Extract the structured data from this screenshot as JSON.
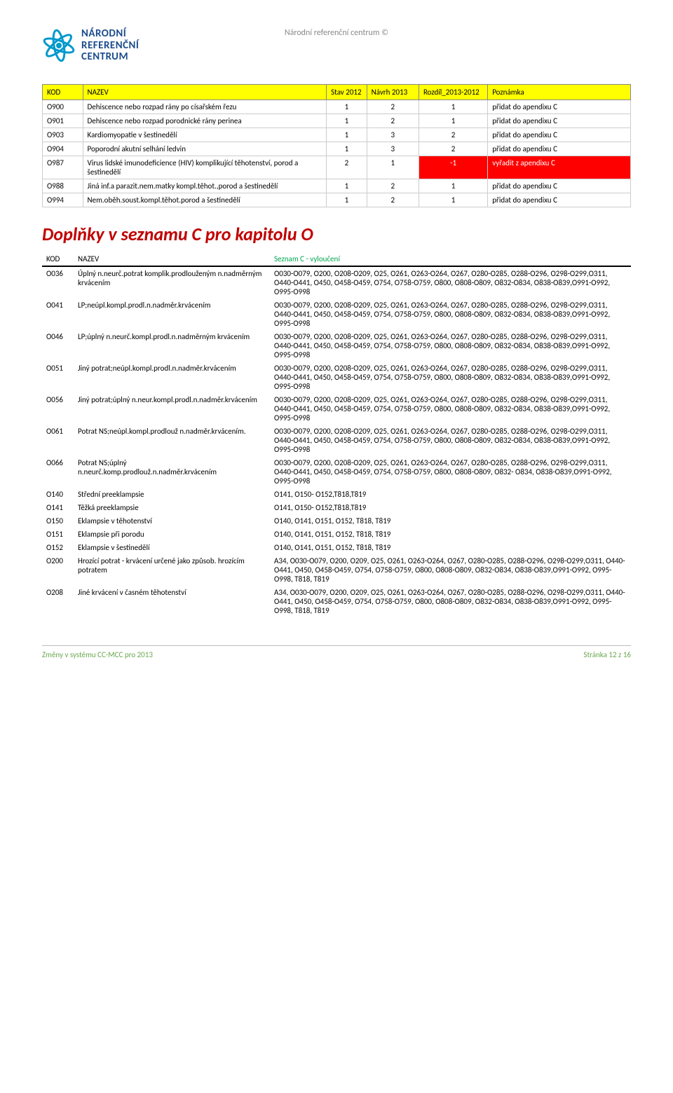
{
  "doc_title": "Národní referenční centrum ©",
  "brand": {
    "l1": "NÁRODNÍ",
    "l2": "REFERENČNÍ",
    "l3": "CENTRUM"
  },
  "logo_color": "#0099cc",
  "table1": {
    "header_bg": "#ffff00",
    "red_bg": "#ff0000",
    "columns": [
      "KOD",
      "NAZEV",
      "Stav 2012",
      "Návrh 2013",
      "Rozdíl_2013-2012",
      "Poznámka"
    ],
    "col_widths": [
      "48px",
      "290px",
      "48px",
      "62px",
      "82px",
      "170px"
    ],
    "rows": [
      {
        "kod": "O900",
        "nazev": "Dehiscence nebo rozpad rány po císařském řezu",
        "stav": "1",
        "navrh": "2",
        "rozdil": "1",
        "pozn": "přidat do apendixu C"
      },
      {
        "kod": "O901",
        "nazev": "Dehiscence nebo rozpad porodnické rány perinea",
        "stav": "1",
        "navrh": "2",
        "rozdil": "1",
        "pozn": "přidat do apendixu C"
      },
      {
        "kod": "O903",
        "nazev": "Kardiomyopatie v šestinedělí",
        "stav": "1",
        "navrh": "3",
        "rozdil": "2",
        "pozn": "přidat do apendixu C"
      },
      {
        "kod": "O904",
        "nazev": "Poporodní akutní selhání ledvin",
        "stav": "1",
        "navrh": "3",
        "rozdil": "2",
        "pozn": "přidat do apendixu C"
      },
      {
        "kod": "O987",
        "nazev": "Virus lidské imunodeficience (HIV) komplikující těhotenství, porod a šestinedělí",
        "stav": "2",
        "navrh": "1",
        "rozdil": "-1",
        "pozn": "vyřadit z apendixu C",
        "red": true
      },
      {
        "kod": "O988",
        "nazev": "Jiná inf.a parazit.nem.matky kompl.těhot.,porod a šestinedělí",
        "stav": "1",
        "navrh": "2",
        "rozdil": "1",
        "pozn": "přidat do apendixu C"
      },
      {
        "kod": "O994",
        "nazev": "Nem.oběh.soust.kompl.těhot.porod a šestinedělí",
        "stav": "1",
        "navrh": "2",
        "rozdil": "1",
        "pozn": "přidat do apendixu C"
      }
    ]
  },
  "section_heading": {
    "text": "Doplňky v seznamu C pro kapitolu O",
    "color": "#c00000"
  },
  "table2": {
    "columns": [
      "KOD",
      "NAZEV",
      "Seznam C - vyloučení"
    ],
    "header_color_3": "#00a650",
    "rows": [
      {
        "kod": "O036",
        "nazev": "Úplný n.neurč.potrat komplik.prodlouženým n.nadměrným krvácením",
        "seznam": "O030-O079, O200, O208-O209, O25, O261, O263-O264, O267, O280-O285, O288-O296, O298-O299,O311, O440-O441, O450, O458-O459, O754, O758-O759, O800, O808-O809, O832-O834, O838-O839,O991-O992, O995-O998"
      },
      {
        "kod": "O041",
        "nazev": "LP;neúpl.kompl.prodl.n.nadměr.krvácením",
        "seznam": "O030-O079, O200, O208-O209, O25, O261, O263-O264, O267, O280-O285, O288-O296, O298-O299,O311, O440-O441, O450, O458-O459, O754, O758-O759, O800, O808-O809, O832-O834, O838-O839,O991-O992, O995-O998"
      },
      {
        "kod": "O046",
        "nazev": "LP;úplný n.neurč.kompl.prodl.n.nadměrným krvácením",
        "seznam": "O030-O079, O200, O208-O209, O25, O261, O263-O264, O267, O280-O285, O288-O296, O298-O299,O311, O440-O441, O450, O458-O459, O754, O758-O759, O800, O808-O809, O832-O834, O838-O839,O991-O992, O995-O998"
      },
      {
        "kod": "O051",
        "nazev": "Jiný potrat;neúpl.kompl.prodl.n.nadměr.krvácením",
        "seznam": "O030-O079, O200, O208-O209, O25, O261, O263-O264, O267, O280-O285, O288-O296, O298-O299,O311, O440-O441, O450, O458-O459, O754, O758-O759, O800, O808-O809, O832-O834, O838-O839,O991-O992, O995-O998"
      },
      {
        "kod": "O056",
        "nazev": "Jiný potrat;úplný n.neur.kompl.prodl.n.nadměr.krvácením",
        "seznam": "O030-O079, O200, O208-O209, O25, O261, O263-O264, O267, O280-O285, O288-O296, O298-O299,O311, O440-O441, O450, O458-O459, O754, O758-O759, O800, O808-O809, O832-O834, O838-O839,O991-O992, O995-O998"
      },
      {
        "kod": "O061",
        "nazev": "Potrat NS;neúpl.kompl.prodlouž n.nadměr.krvácením.",
        "seznam": "O030-O079, O200, O208-O209, O25, O261, O263-O264, O267, O280-O285, O288-O296, O298-O299,O311, O440-O441, O450, O458-O459, O754, O758-O759, O800, O808-O809, O832-O834, O838-O839,O991-O992, O995-O998"
      },
      {
        "kod": "O066",
        "nazev": "Potrat NS;úplný n.neurč.komp.prodlouž.n.nadměr.krvácením",
        "seznam": "O030-O079, O200, O208-O209, O25, O261, O263-O264, O267, O280-O285, O288-O296, O298-O299,O311, O440-O441, O450, O458-O459, O754, O758-O759, O800, O808-O809, O832- O834, O838-O839,O991-O992, O995-O998"
      },
      {
        "kod": "O140",
        "nazev": "Střední preeklampsie",
        "seznam": "O141, O150- O152,T818,T819"
      },
      {
        "kod": "O141",
        "nazev": "Těžká preeklampsie",
        "seznam": "O141, O150- O152,T818,T819"
      },
      {
        "kod": "O150",
        "nazev": "Eklampsie v těhotenství",
        "seznam": "O140, O141, O151, O152, T818, T819"
      },
      {
        "kod": "O151",
        "nazev": "Eklampsie při porodu",
        "seznam": "O140, O141, O151, O152, T818, T819"
      },
      {
        "kod": "O152",
        "nazev": "Eklampsie v šestinedělí",
        "seznam": "O140, O141, O151, O152, T818, T819"
      },
      {
        "kod": "O200",
        "nazev": "Hrozící potrat - krvácení určené jako způsob. hrozícím potratem",
        "seznam": "A34, O030-O079, O200, O209, O25, O261, O263-O264, O267, O280-O285, O288-O296, O298-O299,O311, O440-O441, O450, O458-O459, O754, O758-O759, O800, O808-O809, O832-O834, O838-O839,O991-O992, O995-O998, T818, T819"
      },
      {
        "kod": "O208",
        "nazev": "Jiné krvácení v časném těhotenství",
        "seznam": "A34, O030-O079, O200, O209, O25, O261, O263-O264, O267, O280-O285, O288-O296, O298-O299,O311, O440-O441, O450, O458-O459, O754, O758-O759, O800, O808-O809, O832-O834, O838-O839,O991-O992, O995-O998, T818, T819"
      }
    ]
  },
  "footer": {
    "left": "Změny v systému CC-MCC pro 2013",
    "right": "Stránka 12 z 16",
    "color": "#6aa84f"
  }
}
